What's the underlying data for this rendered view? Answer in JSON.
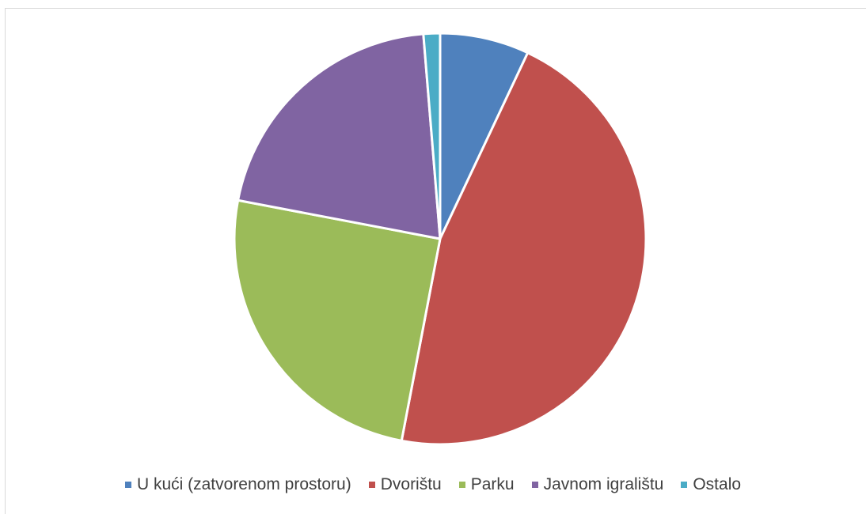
{
  "chart_data": {
    "type": "pie",
    "title": "",
    "categories": [
      "U kući (zatvorenom prostoru)",
      "Dvorištu",
      "Parku",
      "Javnom igralištu",
      "Ostalo"
    ],
    "values": [
      7.0,
      46.0,
      25.0,
      20.7,
      1.3
    ],
    "colors": [
      "#4f81bd",
      "#c0504d",
      "#9bbb59",
      "#8064a2",
      "#4bacc6"
    ],
    "start_angle_deg": 0,
    "direction": "clockwise",
    "legend_position": "bottom",
    "data_labels": false
  }
}
